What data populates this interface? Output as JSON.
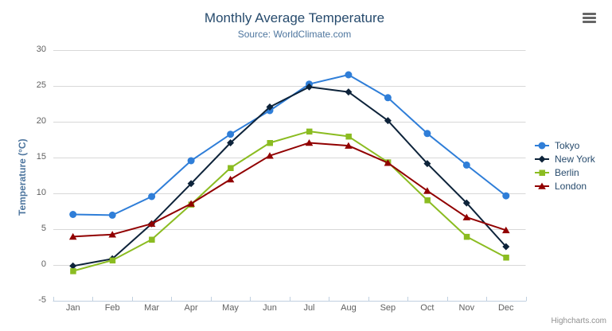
{
  "title": "Monthly Average Temperature",
  "subtitle": "Source: WorldClimate.com",
  "credits": "Highcharts.com",
  "chart_data": {
    "type": "line",
    "title": "Monthly Average Temperature",
    "subtitle": "Source: WorldClimate.com",
    "categories": [
      "Jan",
      "Feb",
      "Mar",
      "Apr",
      "May",
      "Jun",
      "Jul",
      "Aug",
      "Sep",
      "Oct",
      "Nov",
      "Dec"
    ],
    "xlabel": "",
    "ylabel": "Temperature (°C)",
    "ylim": [
      -5,
      30
    ],
    "yticks": [
      -5,
      0,
      5,
      10,
      15,
      20,
      25,
      30
    ],
    "grid": true,
    "legend_position": "right",
    "series": [
      {
        "name": "Tokyo",
        "color": "#2f7ed8",
        "marker": "circle",
        "values": [
          7.0,
          6.9,
          9.5,
          14.5,
          18.2,
          21.5,
          25.2,
          26.5,
          23.3,
          18.3,
          13.9,
          9.6
        ]
      },
      {
        "name": "New York",
        "color": "#0d233a",
        "marker": "diamond",
        "values": [
          -0.2,
          0.8,
          5.7,
          11.3,
          17.0,
          22.0,
          24.8,
          24.1,
          20.1,
          14.1,
          8.6,
          2.5
        ]
      },
      {
        "name": "Berlin",
        "color": "#8bbc21",
        "marker": "square",
        "values": [
          -0.9,
          0.6,
          3.5,
          8.4,
          13.5,
          17.0,
          18.6,
          17.9,
          14.3,
          9.0,
          3.9,
          1.0
        ]
      },
      {
        "name": "London",
        "color": "#910000",
        "marker": "triangle",
        "values": [
          3.9,
          4.2,
          5.7,
          8.5,
          11.9,
          15.2,
          17.0,
          16.6,
          14.2,
          10.3,
          6.6,
          4.8
        ]
      }
    ]
  },
  "styles": {
    "grid_color": "#d8d8d8",
    "axis_line_color": "#c0d0e0",
    "tick_color": "#c0d0e0",
    "axis_label_color": "#606060",
    "title_color": "#274b6d",
    "subtitle_color": "#4d759e",
    "axis_title_color": "#4d759e",
    "legend_text_color": "#274b6d",
    "credits_color": "#909090"
  }
}
